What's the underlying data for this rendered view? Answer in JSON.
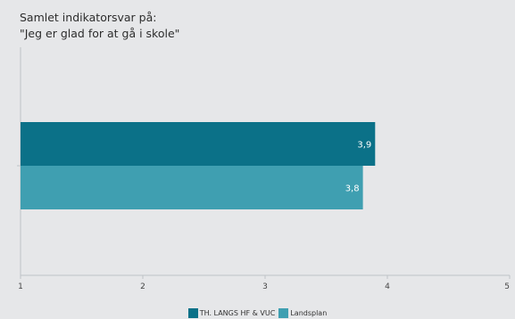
{
  "chart_data": {
    "type": "bar",
    "orientation": "horizontal",
    "title_lines": [
      "Samlet indikatorsvar på:",
      "\"Jeg er glad for at gå i skole\""
    ],
    "xlim": [
      1,
      5
    ],
    "xticks": [
      "1",
      "2",
      "3",
      "4",
      "5"
    ],
    "series": [
      {
        "name": "TH. LANGS HF & VUC",
        "value": 3.9,
        "label": "3,9",
        "color": "#0b7188"
      },
      {
        "name": "Landsplan",
        "value": 3.8,
        "label": "3,8",
        "color": "#3f9fb1"
      }
    ],
    "grid": false,
    "legend_position": "bottom"
  }
}
